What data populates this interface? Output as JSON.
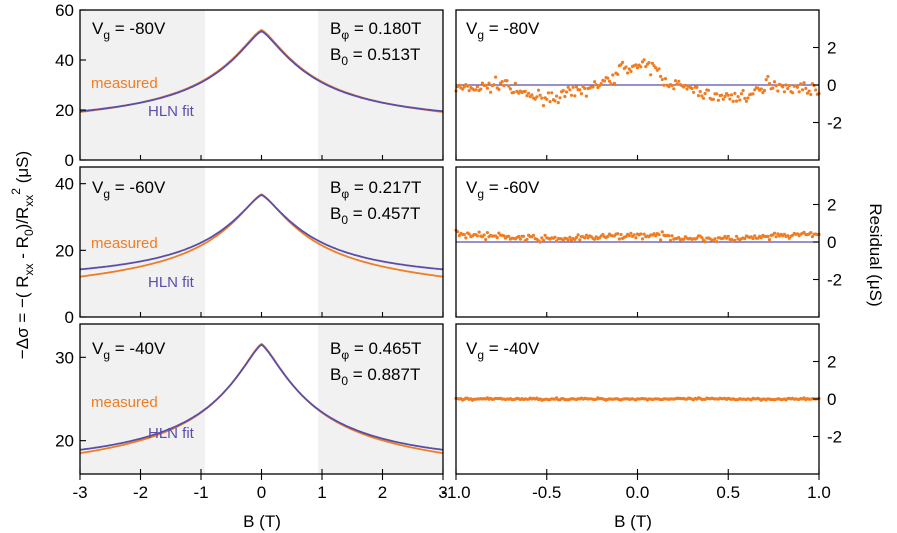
{
  "chart_data": [
    {
      "type": "line",
      "panel": "left-top",
      "label_vg": {
        "prefix": "V",
        "sub": "g",
        "value": " = -80V"
      },
      "bphi": {
        "prefix": "B",
        "sub": "φ",
        "value": " = 0.180T"
      },
      "b0": {
        "prefix": "B",
        "sub": "0",
        "value": " = 0.513T"
      },
      "xlim": [
        -3,
        3
      ],
      "ylim": [
        0,
        60
      ],
      "yticks": [
        "0",
        "20",
        "40",
        "60"
      ],
      "shaded_x_ranges": [
        [
          -3,
          -1
        ],
        [
          1,
          3
        ]
      ],
      "series": [
        {
          "name": "measured",
          "color": "#f07d22",
          "peak": 52.0,
          "tail": 19.8,
          "asym": 0.4
        },
        {
          "name": "HLN fit",
          "color": "#5b4ea8",
          "peak": 51.5,
          "tail": 19.5,
          "asym": 0.0
        }
      ]
    },
    {
      "type": "line",
      "panel": "left-middle",
      "label_vg": {
        "prefix": "V",
        "sub": "g",
        "value": " = -60V"
      },
      "bphi": {
        "prefix": "B",
        "sub": "φ",
        "value": " = 0.217T"
      },
      "b0": {
        "prefix": "B",
        "sub": "0",
        "value": " = 0.457T"
      },
      "xlim": [
        -3,
        3
      ],
      "ylim": [
        0,
        45
      ],
      "yticks": [
        "0",
        "20",
        "40"
      ],
      "shaded_x_ranges": [
        [
          -3,
          -1
        ],
        [
          1,
          3
        ]
      ],
      "series": [
        {
          "name": "measured",
          "color": "#f07d22",
          "peak": 36.8,
          "tail": 13.0,
          "asym": 0.6
        },
        {
          "name": "HLN fit",
          "color": "#5b4ea8",
          "peak": 36.6,
          "tail": 14.3,
          "asym": 0.0
        }
      ]
    },
    {
      "type": "line",
      "panel": "left-bottom",
      "label_vg": {
        "prefix": "V",
        "sub": "g",
        "value": " = -40V"
      },
      "bphi": {
        "prefix": "B",
        "sub": "φ",
        "value": " = 0.465T"
      },
      "b0": {
        "prefix": "B",
        "sub": "0",
        "value": " = 0.887T"
      },
      "xlim": [
        -3,
        3
      ],
      "ylim": [
        16,
        34
      ],
      "yticks": [
        "20",
        "30"
      ],
      "shaded_x_ranges": [
        [
          -3,
          -1
        ],
        [
          1,
          3
        ]
      ],
      "series": [
        {
          "name": "measured",
          "color": "#f07d22",
          "peak": 31.6,
          "tail": 18.8,
          "asym": 0.2
        },
        {
          "name": "HLN fit",
          "color": "#5b4ea8",
          "peak": 31.5,
          "tail": 18.9,
          "asym": 0.0
        }
      ]
    },
    {
      "type": "scatter",
      "panel": "right-top",
      "label_vg": {
        "prefix": "V",
        "sub": "g",
        "value": " = -80V"
      },
      "xlim": [
        -1,
        1
      ],
      "ylim": [
        -4,
        4
      ],
      "yticks": [
        "2",
        "0",
        "-2"
      ],
      "series": [
        {
          "name": "residual",
          "color": "#f07d22",
          "amplitude": 0.6,
          "noise": 0.22
        }
      ]
    },
    {
      "type": "scatter",
      "panel": "right-middle",
      "label_vg": {
        "prefix": "V",
        "sub": "g",
        "value": " = -60V"
      },
      "xlim": [
        -1,
        1
      ],
      "ylim": [
        -4,
        4
      ],
      "yticks": [
        "2",
        "0",
        "-2"
      ],
      "series": [
        {
          "name": "residual",
          "color": "#f07d22",
          "amplitude": 0.2,
          "noise": 0.12
        }
      ]
    },
    {
      "type": "scatter",
      "panel": "right-bottom",
      "label_vg": {
        "prefix": "V",
        "sub": "g",
        "value": " = -40V"
      },
      "xlim": [
        -1,
        1
      ],
      "ylim": [
        -4,
        4
      ],
      "yticks": [
        "2",
        "0",
        "-2"
      ],
      "series": [
        {
          "name": "residual",
          "color": "#f07d22",
          "amplitude": 0.02,
          "noise": 0.04
        }
      ]
    }
  ],
  "legend": {
    "measured": "measured",
    "fit": "HLN fit"
  },
  "left_xticks": [
    "-3",
    "-2",
    "-1",
    "0",
    "1",
    "2",
    "3"
  ],
  "right_xticks": [
    "-1.0",
    "-0.5",
    "0.0",
    "0.5",
    "1.0"
  ],
  "xlabel_left": "B (T)",
  "xlabel_right": "B (T)",
  "ylabel_left": "−Δσ = −( R_xx - R_0 )/R_xx^2 (μS)",
  "ylabel_right": "Residual (μS)",
  "colors": {
    "measured": "#f07d22",
    "fit": "#5b4ea8",
    "shade": "#f1f1f1"
  }
}
